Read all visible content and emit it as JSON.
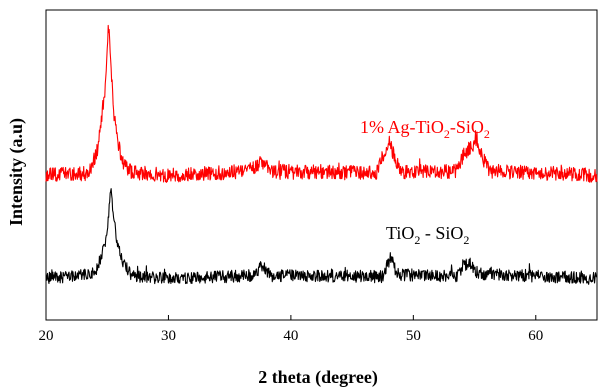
{
  "chart_data": {
    "type": "line",
    "title": "",
    "xlabel": "2 theta (degree)",
    "ylabel": "Intensity (a.u)",
    "xlim": [
      20,
      65
    ],
    "x_ticks": [
      "20",
      "30",
      "40",
      "50",
      "60"
    ],
    "y_ticks_shown": false,
    "grid": false,
    "legend": "none",
    "series": [
      {
        "label_main": "1% Ag-TiO",
        "label_sub1": "2",
        "label_mid": "-SiO",
        "label_sub2": "2",
        "color": "#ff0000",
        "baseline": 1.0,
        "noise": 0.07,
        "x": [
          20,
          23.5,
          24.2,
          24.8,
          25.1,
          25.3,
          25.5,
          25.8,
          26.3,
          27.0,
          30,
          36.5,
          37.5,
          38.5,
          47.0,
          47.6,
          48.0,
          48.4,
          49.0,
          53.5,
          54.2,
          54.8,
          55.2,
          55.6,
          56.2,
          65
        ],
        "y": [
          1.0,
          1.02,
          1.25,
          1.8,
          2.45,
          2.1,
          1.65,
          1.35,
          1.12,
          1.03,
          1.0,
          1.04,
          1.12,
          1.04,
          1.02,
          1.22,
          1.32,
          1.2,
          1.03,
          1.04,
          1.22,
          1.28,
          1.35,
          1.18,
          1.04,
          1.0
        ]
      },
      {
        "label_main": "TiO",
        "label_sub1": "2",
        "label_mid": " - SiO",
        "label_sub2": "2",
        "color": "#000000",
        "baseline": 0.0,
        "noise": 0.06,
        "x": [
          20,
          24.0,
          24.6,
          25.0,
          25.3,
          25.5,
          25.8,
          26.3,
          27.0,
          30,
          36.8,
          37.6,
          38.4,
          47.5,
          48.1,
          48.7,
          53.5,
          54.1,
          54.7,
          55.3,
          65
        ],
        "y": [
          0.0,
          0.05,
          0.25,
          0.45,
          0.85,
          0.6,
          0.38,
          0.15,
          0.03,
          0.0,
          0.03,
          0.12,
          0.03,
          0.02,
          0.2,
          0.04,
          0.02,
          0.12,
          0.15,
          0.05,
          0.0
        ]
      }
    ]
  }
}
